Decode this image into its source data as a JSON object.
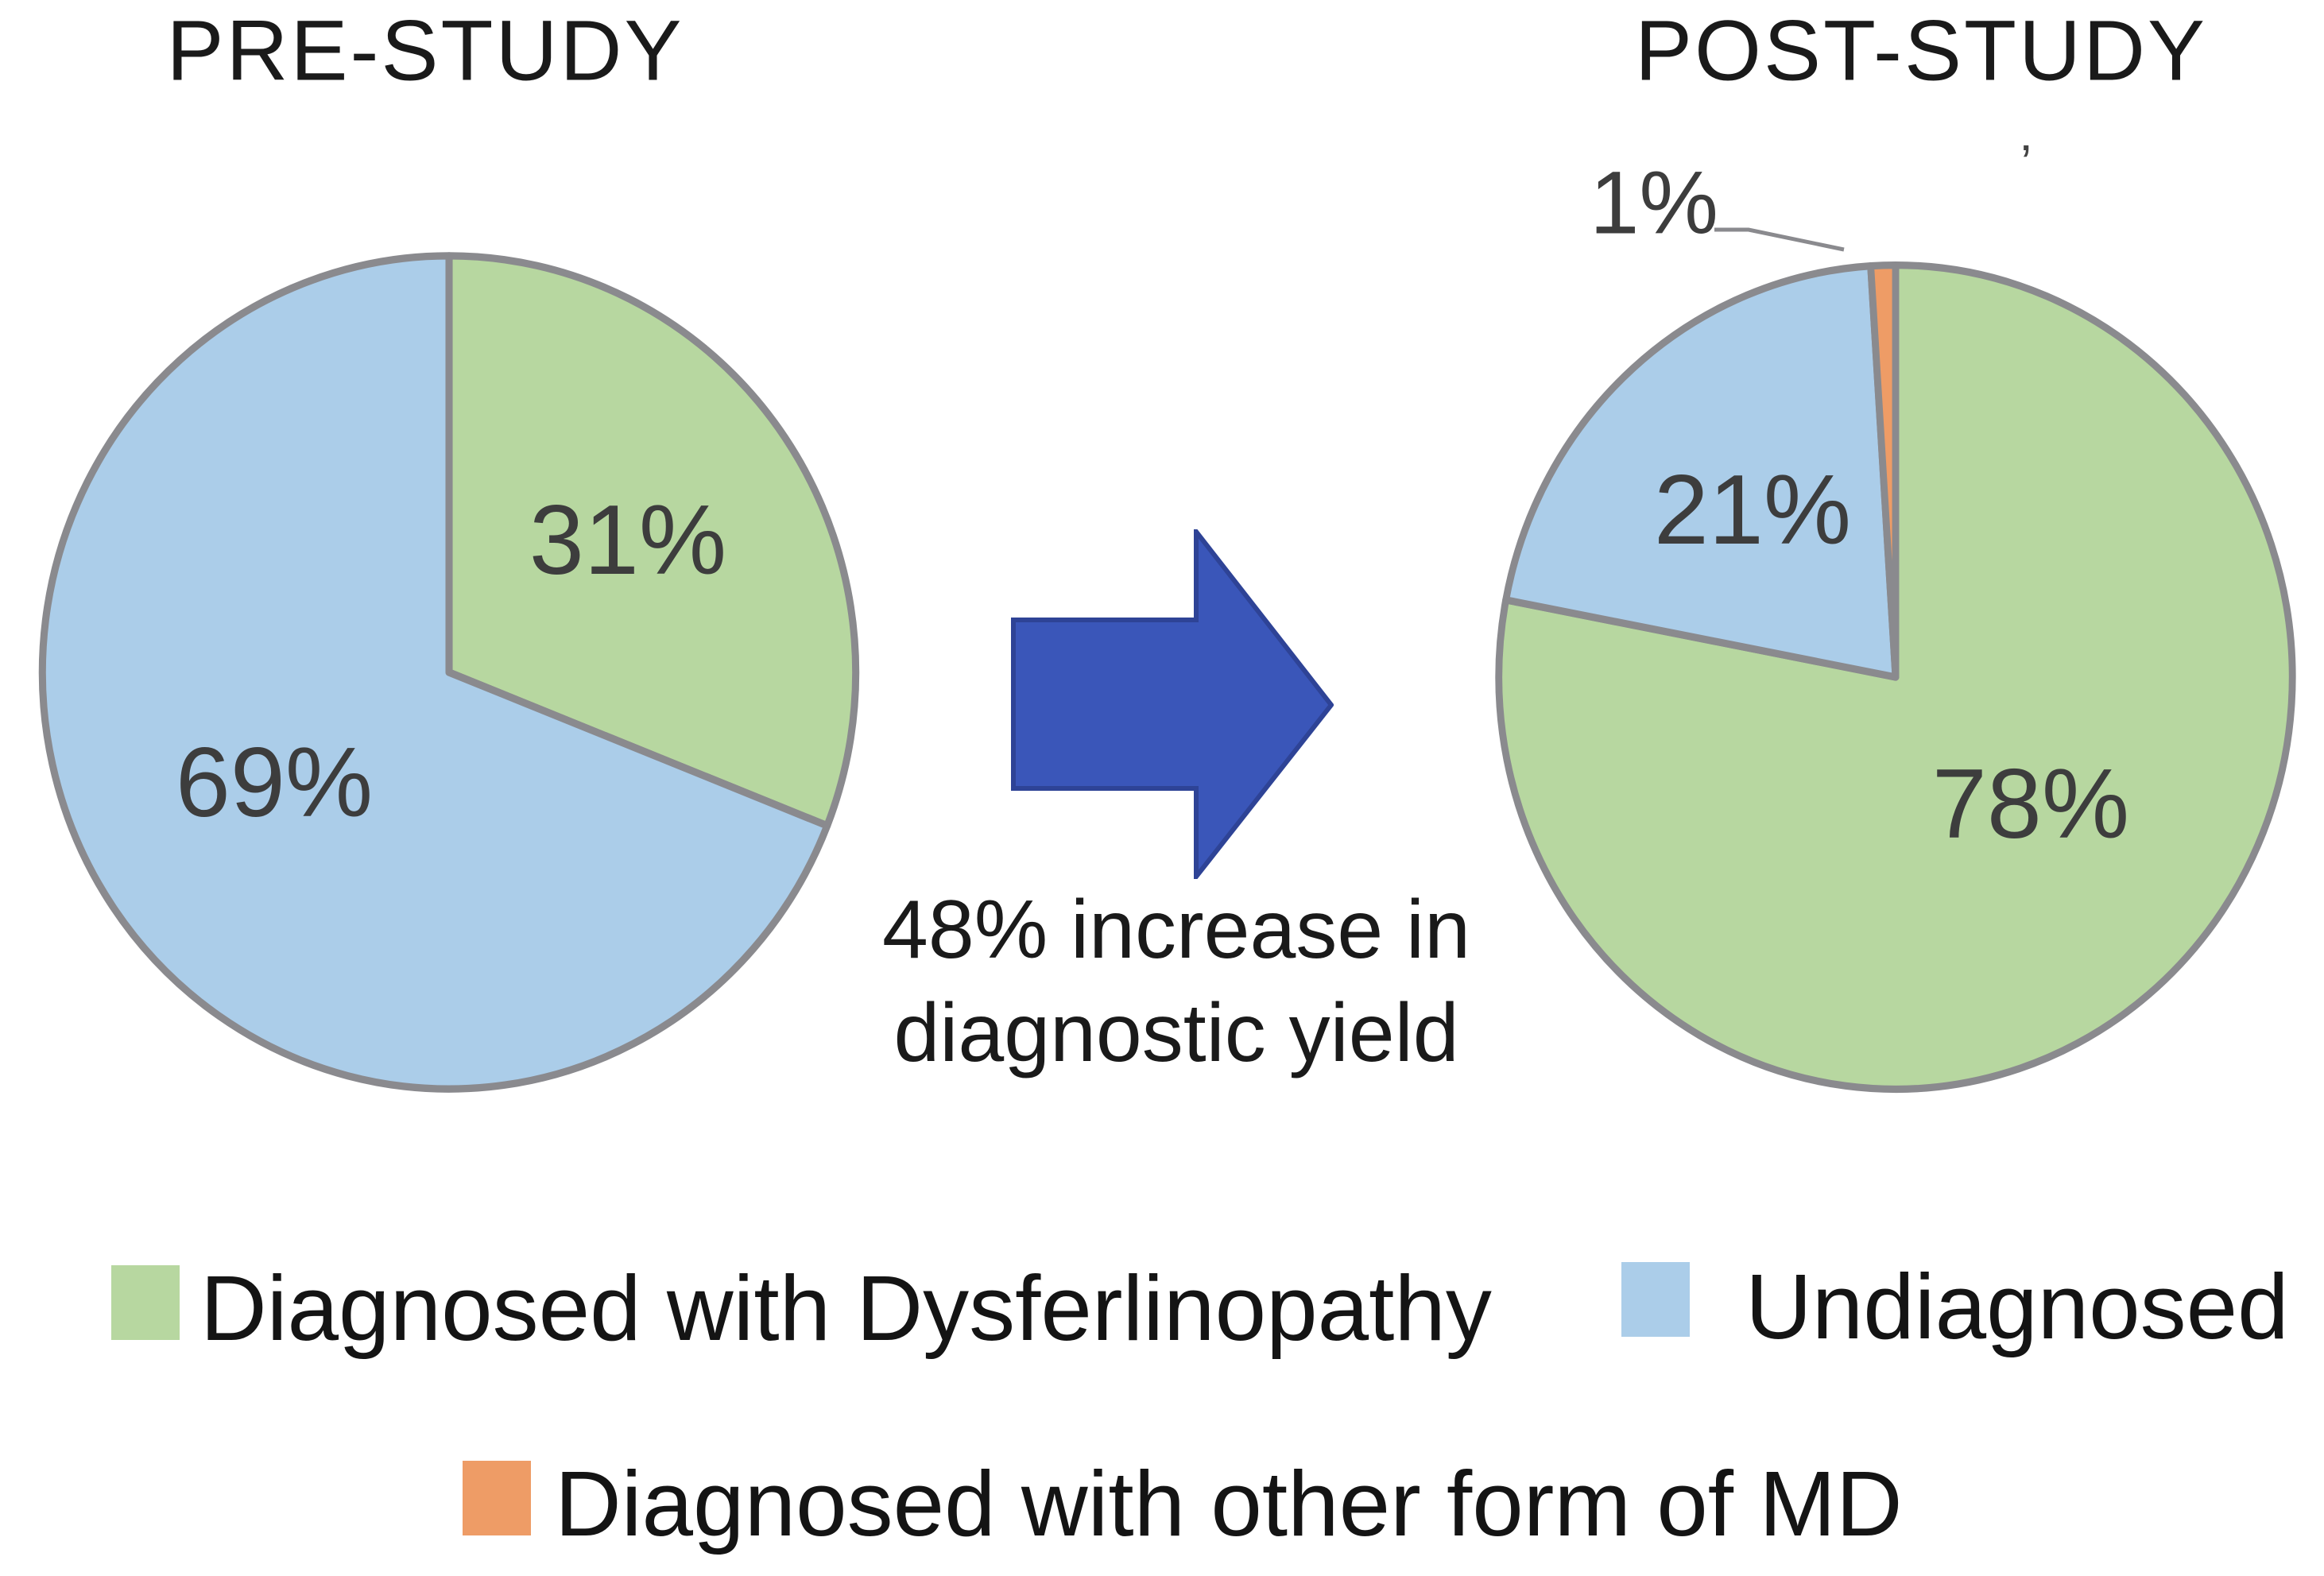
{
  "titles": {
    "pre": "PRE-STUDY",
    "post": "POST-STUDY"
  },
  "arrow": {
    "caption_line1": "48% increase in",
    "caption_line2": "diagnostic yield"
  },
  "stray_mark": "’",
  "colors": {
    "diagnosed_green": "#b7d7a0",
    "undiagnosed_blue": "#abcde9",
    "other_md_orange": "#ee9c66",
    "pie_border_gray": "#8a8a8e",
    "leader_line_gray": "#8a8a8e",
    "arrow_fill": "#3a56b9",
    "arrow_stroke": "#2e4396",
    "text_dark": "#1a1a1a",
    "slice_label_gray": "#3d3d3d"
  },
  "legend": {
    "items": [
      {
        "label": "Diagnosed with Dysferlinopathy",
        "color": "#b7d7a0"
      },
      {
        "label": "Undiagnosed",
        "color": "#abcde9"
      },
      {
        "label": "Diagnosed with other form of MD",
        "color": "#ee9c66"
      }
    ]
  },
  "chart_data": [
    {
      "type": "pie",
      "title": "PRE-STUDY",
      "direction": "clockwise",
      "start_angle_deg": 0,
      "slice_names": [
        "diagnosed-dysferlinopathy",
        "undiagnosed"
      ],
      "labels": [
        "Diagnosed with Dysferlinopathy",
        "Undiagnosed"
      ],
      "values": [
        31,
        69
      ],
      "value_labels": [
        "31%",
        "69%"
      ],
      "colors": [
        "#b7d7a0",
        "#abcde9"
      ]
    },
    {
      "type": "pie",
      "title": "POST-STUDY",
      "direction": "clockwise",
      "start_angle_deg": 0,
      "slice_names": [
        "diagnosed-dysferlinopathy",
        "undiagnosed",
        "other-md"
      ],
      "labels": [
        "Diagnosed with Dysferlinopathy",
        "Undiagnosed",
        "Diagnosed with other form of MD"
      ],
      "values": [
        78,
        21,
        1
      ],
      "value_labels": [
        "78%",
        "21%",
        "1%"
      ],
      "colors": [
        "#b7d7a0",
        "#abcde9",
        "#ee9c66"
      ]
    }
  ]
}
